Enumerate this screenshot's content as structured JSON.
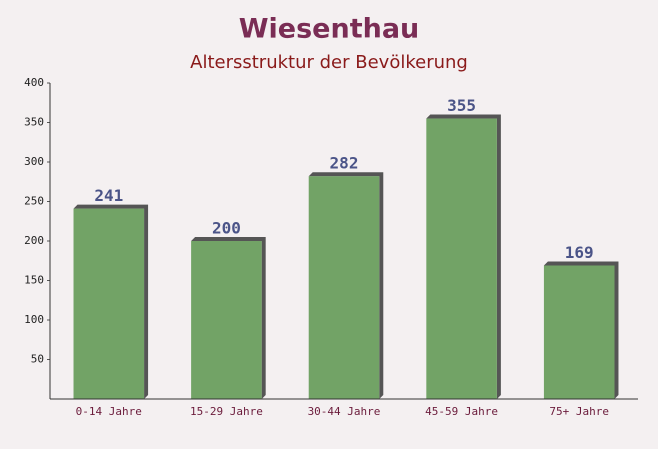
{
  "chart_data": {
    "type": "bar",
    "title": "Wiesenthau",
    "subtitle": "Altersstruktur der Bevölkerung",
    "categories": [
      "0-14 Jahre",
      "15-29 Jahre",
      "30-44 Jahre",
      "45-59 Jahre",
      "75+ Jahre"
    ],
    "values": [
      241,
      200,
      282,
      355,
      169
    ],
    "color": "#6a9e5e",
    "ylim": [
      0,
      400
    ],
    "yticks": [
      50,
      100,
      150,
      200,
      250,
      300,
      350,
      400
    ],
    "grid": false
  }
}
